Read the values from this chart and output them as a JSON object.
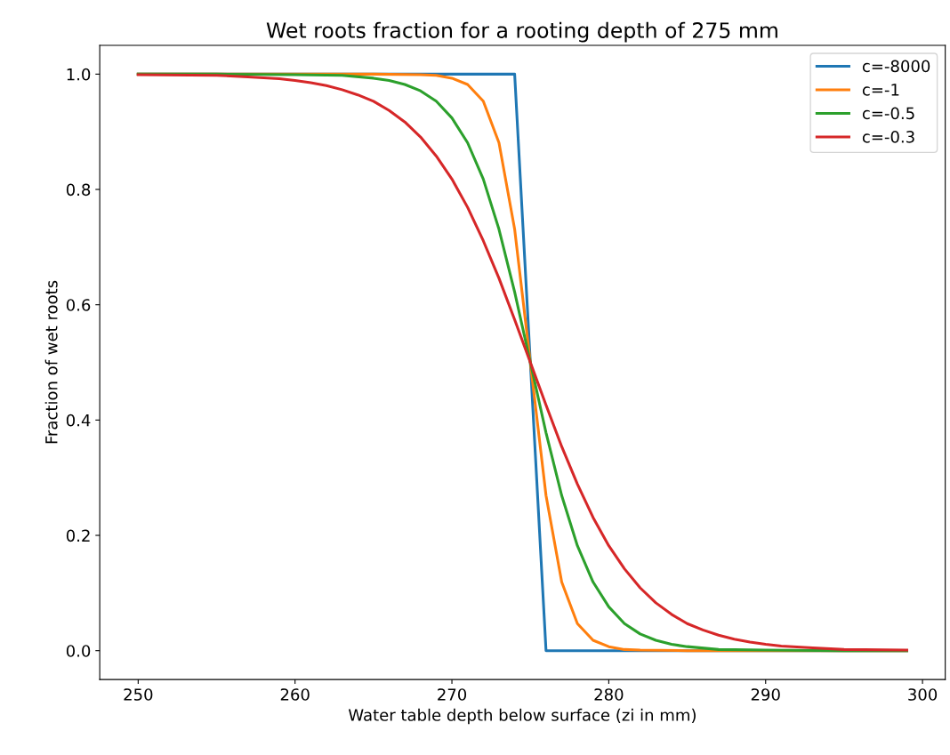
{
  "chart_data": {
    "type": "line",
    "title": "Wet roots fraction for a rooting depth of 275 mm",
    "xlabel": "Water table depth below surface (zi in mm)",
    "ylabel": "Fraction of wet roots",
    "xlim": [
      247.55,
      301.45
    ],
    "ylim": [
      -0.05,
      1.05
    ],
    "xticks": [
      250,
      260,
      270,
      280,
      290,
      300
    ],
    "yticks": [
      {
        "value": 0,
        "label": "0.0"
      },
      {
        "value": 0.2,
        "label": "0.2"
      },
      {
        "value": 0.4,
        "label": "0.4"
      },
      {
        "value": 0.6,
        "label": "0.6"
      },
      {
        "value": 0.8,
        "label": "0.8"
      },
      {
        "value": 1,
        "label": "1.0"
      }
    ],
    "grid": false,
    "legend": "top right",
    "line_style": "solid",
    "marker": "none",
    "series": [
      {
        "name": "c=-8000",
        "color": "#1f77b4",
        "x": [
          250,
          274,
          275,
          276,
          299
        ],
        "values": [
          1,
          1,
          0.5,
          0,
          0
        ]
      },
      {
        "name": "c=-1",
        "color": "#ff7f0e",
        "x": [
          250,
          265,
          268,
          269,
          270,
          271,
          272,
          273,
          274,
          275,
          276,
          277,
          278,
          279,
          280,
          281,
          282,
          285,
          299
        ],
        "values": [
          1,
          1,
          0.999,
          0.998,
          0.993,
          0.982,
          0.953,
          0.881,
          0.731,
          0.5,
          0.269,
          0.119,
          0.047,
          0.018,
          0.007,
          0.002,
          0.001,
          0,
          0
        ]
      },
      {
        "name": "c=-0.5",
        "color": "#2ca02c",
        "x": [
          250,
          255,
          260,
          263,
          265,
          266,
          267,
          268,
          269,
          270,
          271,
          272,
          273,
          274,
          275,
          276,
          277,
          278,
          279,
          280,
          281,
          282,
          283,
          284,
          285,
          287,
          290,
          295,
          299
        ],
        "values": [
          1,
          1,
          0.999,
          0.998,
          0.993,
          0.989,
          0.982,
          0.971,
          0.953,
          0.924,
          0.881,
          0.818,
          0.731,
          0.622,
          0.5,
          0.378,
          0.269,
          0.182,
          0.119,
          0.076,
          0.047,
          0.029,
          0.018,
          0.011,
          0.007,
          0.002,
          0.001,
          0,
          0
        ]
      },
      {
        "name": "c=-0.3",
        "color": "#d62728",
        "x": [
          250,
          255,
          257,
          259,
          260,
          261,
          262,
          263,
          264,
          265,
          266,
          267,
          268,
          269,
          270,
          271,
          272,
          273,
          274,
          275,
          276,
          277,
          278,
          279,
          280,
          281,
          282,
          283,
          284,
          285,
          286,
          287,
          288,
          289,
          290,
          291,
          293,
          295,
          299
        ],
        "values": [
          0.999,
          0.998,
          0.995,
          0.992,
          0.989,
          0.985,
          0.98,
          0.973,
          0.964,
          0.953,
          0.937,
          0.917,
          0.891,
          0.858,
          0.818,
          0.769,
          0.711,
          0.646,
          0.574,
          0.5,
          0.426,
          0.354,
          0.289,
          0.231,
          0.182,
          0.142,
          0.109,
          0.083,
          0.063,
          0.047,
          0.036,
          0.027,
          0.02,
          0.015,
          0.011,
          0.008,
          0.005,
          0.002,
          0.001
        ]
      }
    ]
  }
}
